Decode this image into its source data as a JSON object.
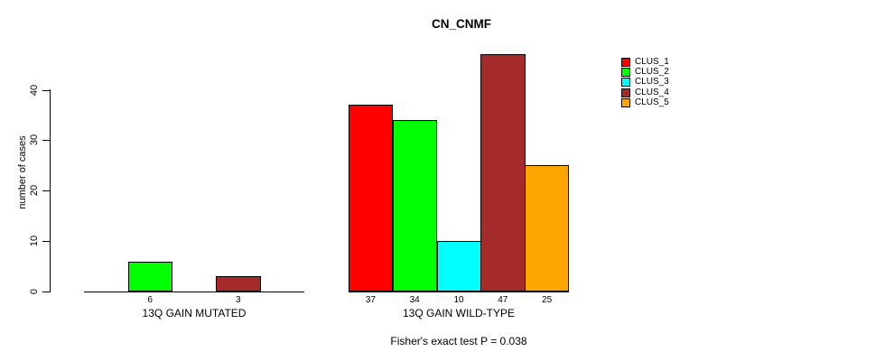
{
  "chart_data": {
    "type": "bar",
    "title": "CN_CNMF",
    "ylabel": "number of cases",
    "xlabel": "",
    "ylim": [
      0,
      40
    ],
    "yticks": [
      0,
      10,
      20,
      30,
      40
    ],
    "grid": false,
    "legend_position": "right",
    "categories": [
      "13Q GAIN MUTATED",
      "13Q GAIN WILD-TYPE"
    ],
    "series": [
      {
        "name": "CLUS_1",
        "color": "#FF0000",
        "values": [
          0,
          37
        ]
      },
      {
        "name": "CLUS_2",
        "color": "#00FF00",
        "values": [
          6,
          34
        ]
      },
      {
        "name": "CLUS_3",
        "color": "#00FFFF",
        "values": [
          0,
          10
        ]
      },
      {
        "name": "CLUS_4",
        "color": "#A52A2A",
        "values": [
          3,
          47
        ]
      },
      {
        "name": "CLUS_5",
        "color": "#FFA500",
        "values": [
          0,
          25
        ]
      }
    ],
    "bar_value_labels_shown_for_positive_only": true,
    "annotation": "Fisher's exact test P = 0.038"
  }
}
